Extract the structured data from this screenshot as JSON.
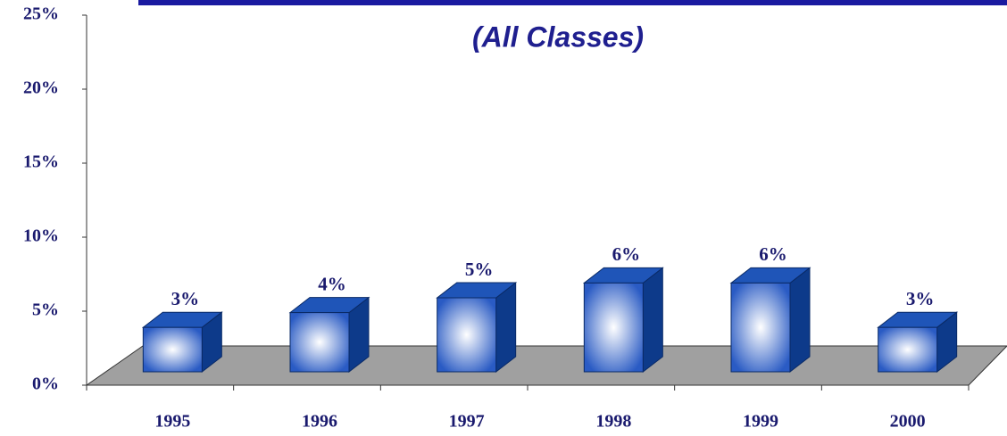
{
  "chart_data": {
    "type": "bar3d",
    "title": "(All Classes)",
    "categories": [
      "1995",
      "1996",
      "1997",
      "1998",
      "1999",
      "2000"
    ],
    "values": [
      3,
      4,
      5,
      6,
      6,
      3
    ],
    "value_labels": [
      "3%",
      "4%",
      "5%",
      "6%",
      "6%",
      "3%"
    ],
    "color": "#2a5bc4",
    "ylim": [
      0,
      25
    ],
    "yticks": [
      {
        "value": 0,
        "label": "0%"
      },
      {
        "value": 5,
        "label": "5%"
      },
      {
        "value": 10,
        "label": "10%"
      },
      {
        "value": 15,
        "label": "15%"
      },
      {
        "value": 20,
        "label": "20%"
      },
      {
        "value": 25,
        "label": "25%"
      }
    ]
  }
}
